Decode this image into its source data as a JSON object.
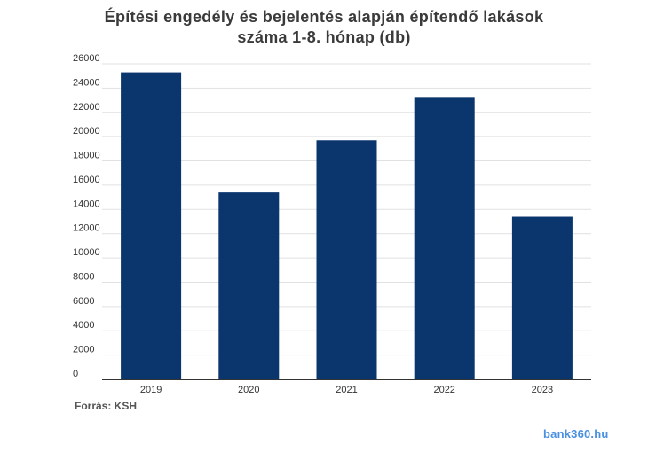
{
  "header": {
    "title_line1": "Építési engedély és bejelentés alapján építendő lakások",
    "title_line2": "száma 1-8. hónap (db)"
  },
  "footer": {
    "source": "Forrás: KSH",
    "brand": "bank360.hu"
  },
  "colors": {
    "bar": "#0b356d",
    "grid": "#e1e1e1",
    "axis": "#333333",
    "text": "#333333",
    "brand": "#4a90e2"
  },
  "chart_data": {
    "type": "bar",
    "categories": [
      "2019",
      "2020",
      "2021",
      "2022",
      "2023"
    ],
    "values": [
      25300,
      15400,
      19700,
      23200,
      13400
    ],
    "title": "Építési engedély és bejelentés alapján építendő lakások száma 1-8. hónap (db)",
    "xlabel": "",
    "ylabel": "",
    "ylim": [
      0,
      26000
    ],
    "yticks": [
      0,
      2000,
      4000,
      6000,
      8000,
      10000,
      12000,
      14000,
      16000,
      18000,
      20000,
      22000,
      24000,
      26000
    ],
    "grid": true,
    "legend": "none"
  }
}
